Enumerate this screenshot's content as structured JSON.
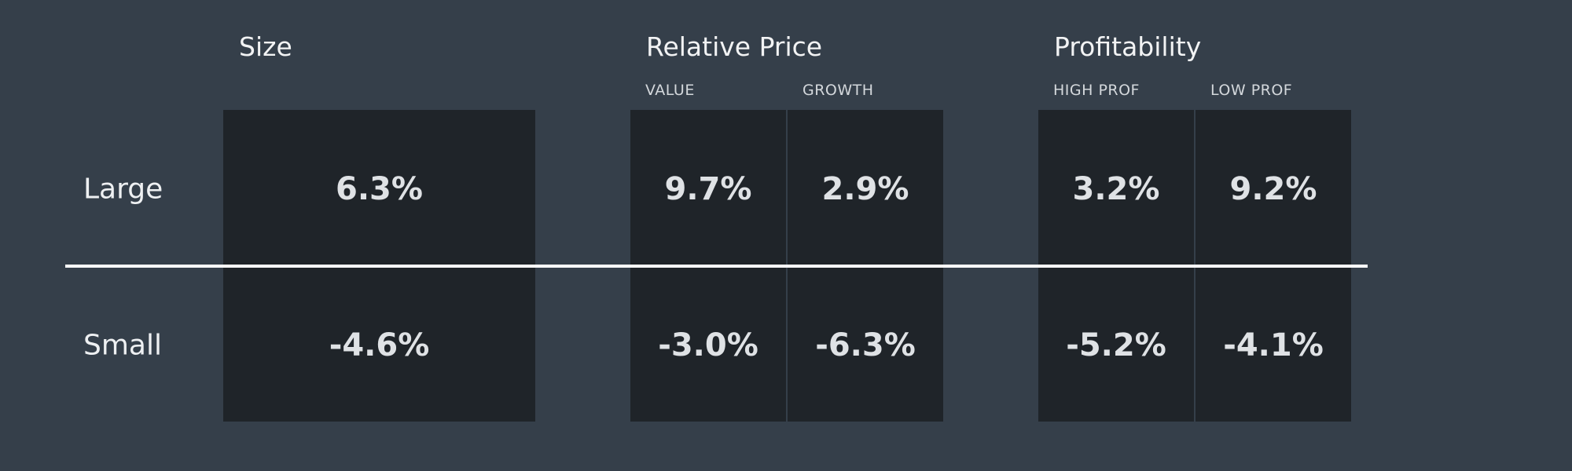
{
  "rows": [
    "Large",
    "Small"
  ],
  "groups": [
    {
      "title": "Size",
      "columns": [
        {
          "values": [
            "6.3%",
            "-4.6%"
          ]
        }
      ]
    },
    {
      "title": "Relative Price",
      "columns": [
        {
          "header": "VALUE",
          "values": [
            "9.7%",
            "-3.0%"
          ]
        },
        {
          "header": "GROWTH",
          "values": [
            "2.9%",
            "-6.3%"
          ]
        }
      ]
    },
    {
      "title": "Profitability",
      "columns": [
        {
          "header": "HIGH PROF",
          "values": [
            "3.2%",
            "-5.2%"
          ]
        },
        {
          "header": "LOW PROF",
          "values": [
            "9.2%",
            "-4.1%"
          ]
        }
      ]
    }
  ]
}
